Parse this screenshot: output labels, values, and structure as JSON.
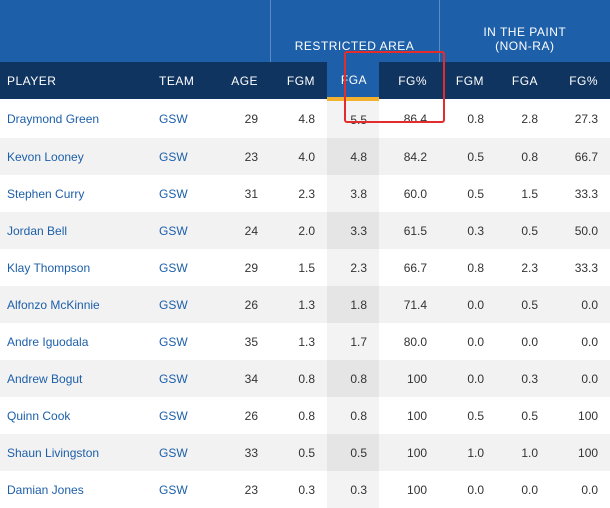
{
  "groups": {
    "restricted_area": "RESTRICTED AREA",
    "in_the_paint_line1": "IN THE PAINT",
    "in_the_paint_line2": "(NON-RA)"
  },
  "columns": {
    "player": "PLAYER",
    "team": "TEAM",
    "age": "AGE",
    "ra_fgm": "FGM",
    "ra_fga": "FGA",
    "ra_fgp": "FG%",
    "paint_fgm": "FGM",
    "paint_fga": "FGA",
    "paint_fgp": "FG%"
  },
  "sorted_column": "ra_fga",
  "highlighted": {
    "row": "Draymond Green",
    "columns": [
      "ra_fga",
      "ra_fgp"
    ],
    "color": "#e52c2c"
  },
  "colors": {
    "header_blue": "#1d5fa9",
    "header_navy": "#0f3460",
    "sort_accent": "#f2b230",
    "link": "#1d5fa9"
  },
  "rows": [
    {
      "player": "Draymond Green",
      "team": "GSW",
      "age": "29",
      "ra_fgm": "4.8",
      "ra_fga": "5.5",
      "ra_fgp": "86.4",
      "paint_fgm": "0.8",
      "paint_fga": "2.8",
      "paint_fgp": "27.3"
    },
    {
      "player": "Kevon Looney",
      "team": "GSW",
      "age": "23",
      "ra_fgm": "4.0",
      "ra_fga": "4.8",
      "ra_fgp": "84.2",
      "paint_fgm": "0.5",
      "paint_fga": "0.8",
      "paint_fgp": "66.7"
    },
    {
      "player": "Stephen Curry",
      "team": "GSW",
      "age": "31",
      "ra_fgm": "2.3",
      "ra_fga": "3.8",
      "ra_fgp": "60.0",
      "paint_fgm": "0.5",
      "paint_fga": "1.5",
      "paint_fgp": "33.3"
    },
    {
      "player": "Jordan Bell",
      "team": "GSW",
      "age": "24",
      "ra_fgm": "2.0",
      "ra_fga": "3.3",
      "ra_fgp": "61.5",
      "paint_fgm": "0.3",
      "paint_fga": "0.5",
      "paint_fgp": "50.0"
    },
    {
      "player": "Klay Thompson",
      "team": "GSW",
      "age": "29",
      "ra_fgm": "1.5",
      "ra_fga": "2.3",
      "ra_fgp": "66.7",
      "paint_fgm": "0.8",
      "paint_fga": "2.3",
      "paint_fgp": "33.3"
    },
    {
      "player": "Alfonzo McKinnie",
      "team": "GSW",
      "age": "26",
      "ra_fgm": "1.3",
      "ra_fga": "1.8",
      "ra_fgp": "71.4",
      "paint_fgm": "0.0",
      "paint_fga": "0.5",
      "paint_fgp": "0.0"
    },
    {
      "player": "Andre Iguodala",
      "team": "GSW",
      "age": "35",
      "ra_fgm": "1.3",
      "ra_fga": "1.7",
      "ra_fgp": "80.0",
      "paint_fgm": "0.0",
      "paint_fga": "0.0",
      "paint_fgp": "0.0"
    },
    {
      "player": "Andrew Bogut",
      "team": "GSW",
      "age": "34",
      "ra_fgm": "0.8",
      "ra_fga": "0.8",
      "ra_fgp": "100",
      "paint_fgm": "0.0",
      "paint_fga": "0.3",
      "paint_fgp": "0.0"
    },
    {
      "player": "Quinn Cook",
      "team": "GSW",
      "age": "26",
      "ra_fgm": "0.8",
      "ra_fga": "0.8",
      "ra_fgp": "100",
      "paint_fgm": "0.5",
      "paint_fga": "0.5",
      "paint_fgp": "100"
    },
    {
      "player": "Shaun Livingston",
      "team": "GSW",
      "age": "33",
      "ra_fgm": "0.5",
      "ra_fga": "0.5",
      "ra_fgp": "100",
      "paint_fgm": "1.0",
      "paint_fga": "1.0",
      "paint_fgp": "100"
    },
    {
      "player": "Damian Jones",
      "team": "GSW",
      "age": "23",
      "ra_fgm": "0.3",
      "ra_fga": "0.3",
      "ra_fgp": "100",
      "paint_fgm": "0.0",
      "paint_fga": "0.0",
      "paint_fgp": "0.0"
    }
  ]
}
